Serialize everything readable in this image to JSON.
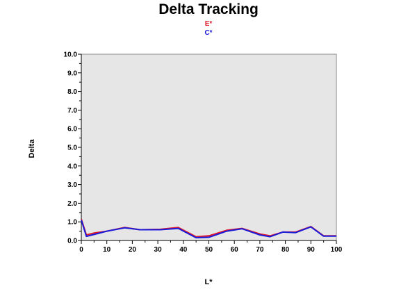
{
  "chart_data": {
    "type": "line",
    "title": "Delta Tracking",
    "xlabel": "L*",
    "ylabel": "Delta",
    "xlim": [
      0,
      100
    ],
    "ylim": [
      0,
      10
    ],
    "x_ticks": [
      "0",
      "10",
      "20",
      "30",
      "40",
      "50",
      "60",
      "70",
      "80",
      "90",
      "100"
    ],
    "y_ticks": [
      "0.0",
      "1.0",
      "2.0",
      "3.0",
      "4.0",
      "5.0",
      "6.0",
      "7.0",
      "8.0",
      "9.0",
      "10.0"
    ],
    "grid": false,
    "legend_placement": "top-center",
    "plot_background": "#e6e6e6",
    "series": [
      {
        "name": "E*",
        "color": "#e0192a",
        "x": [
          0,
          2,
          5,
          10,
          17,
          23,
          31,
          38,
          45,
          50,
          57,
          63,
          70,
          74,
          79,
          84,
          90,
          95,
          100
        ],
        "y": [
          1.15,
          0.3,
          0.4,
          0.5,
          0.7,
          0.58,
          0.6,
          0.7,
          0.2,
          0.25,
          0.55,
          0.65,
          0.35,
          0.25,
          0.45,
          0.45,
          0.75,
          0.25,
          0.25
        ]
      },
      {
        "name": "C*",
        "color": "#1a1adb",
        "x": [
          0,
          2,
          5,
          10,
          17,
          23,
          31,
          38,
          45,
          50,
          57,
          63,
          70,
          74,
          79,
          84,
          90,
          95,
          100
        ],
        "y": [
          1.1,
          0.22,
          0.32,
          0.5,
          0.68,
          0.58,
          0.58,
          0.65,
          0.15,
          0.17,
          0.5,
          0.63,
          0.3,
          0.2,
          0.45,
          0.42,
          0.73,
          0.23,
          0.23
        ]
      }
    ]
  }
}
